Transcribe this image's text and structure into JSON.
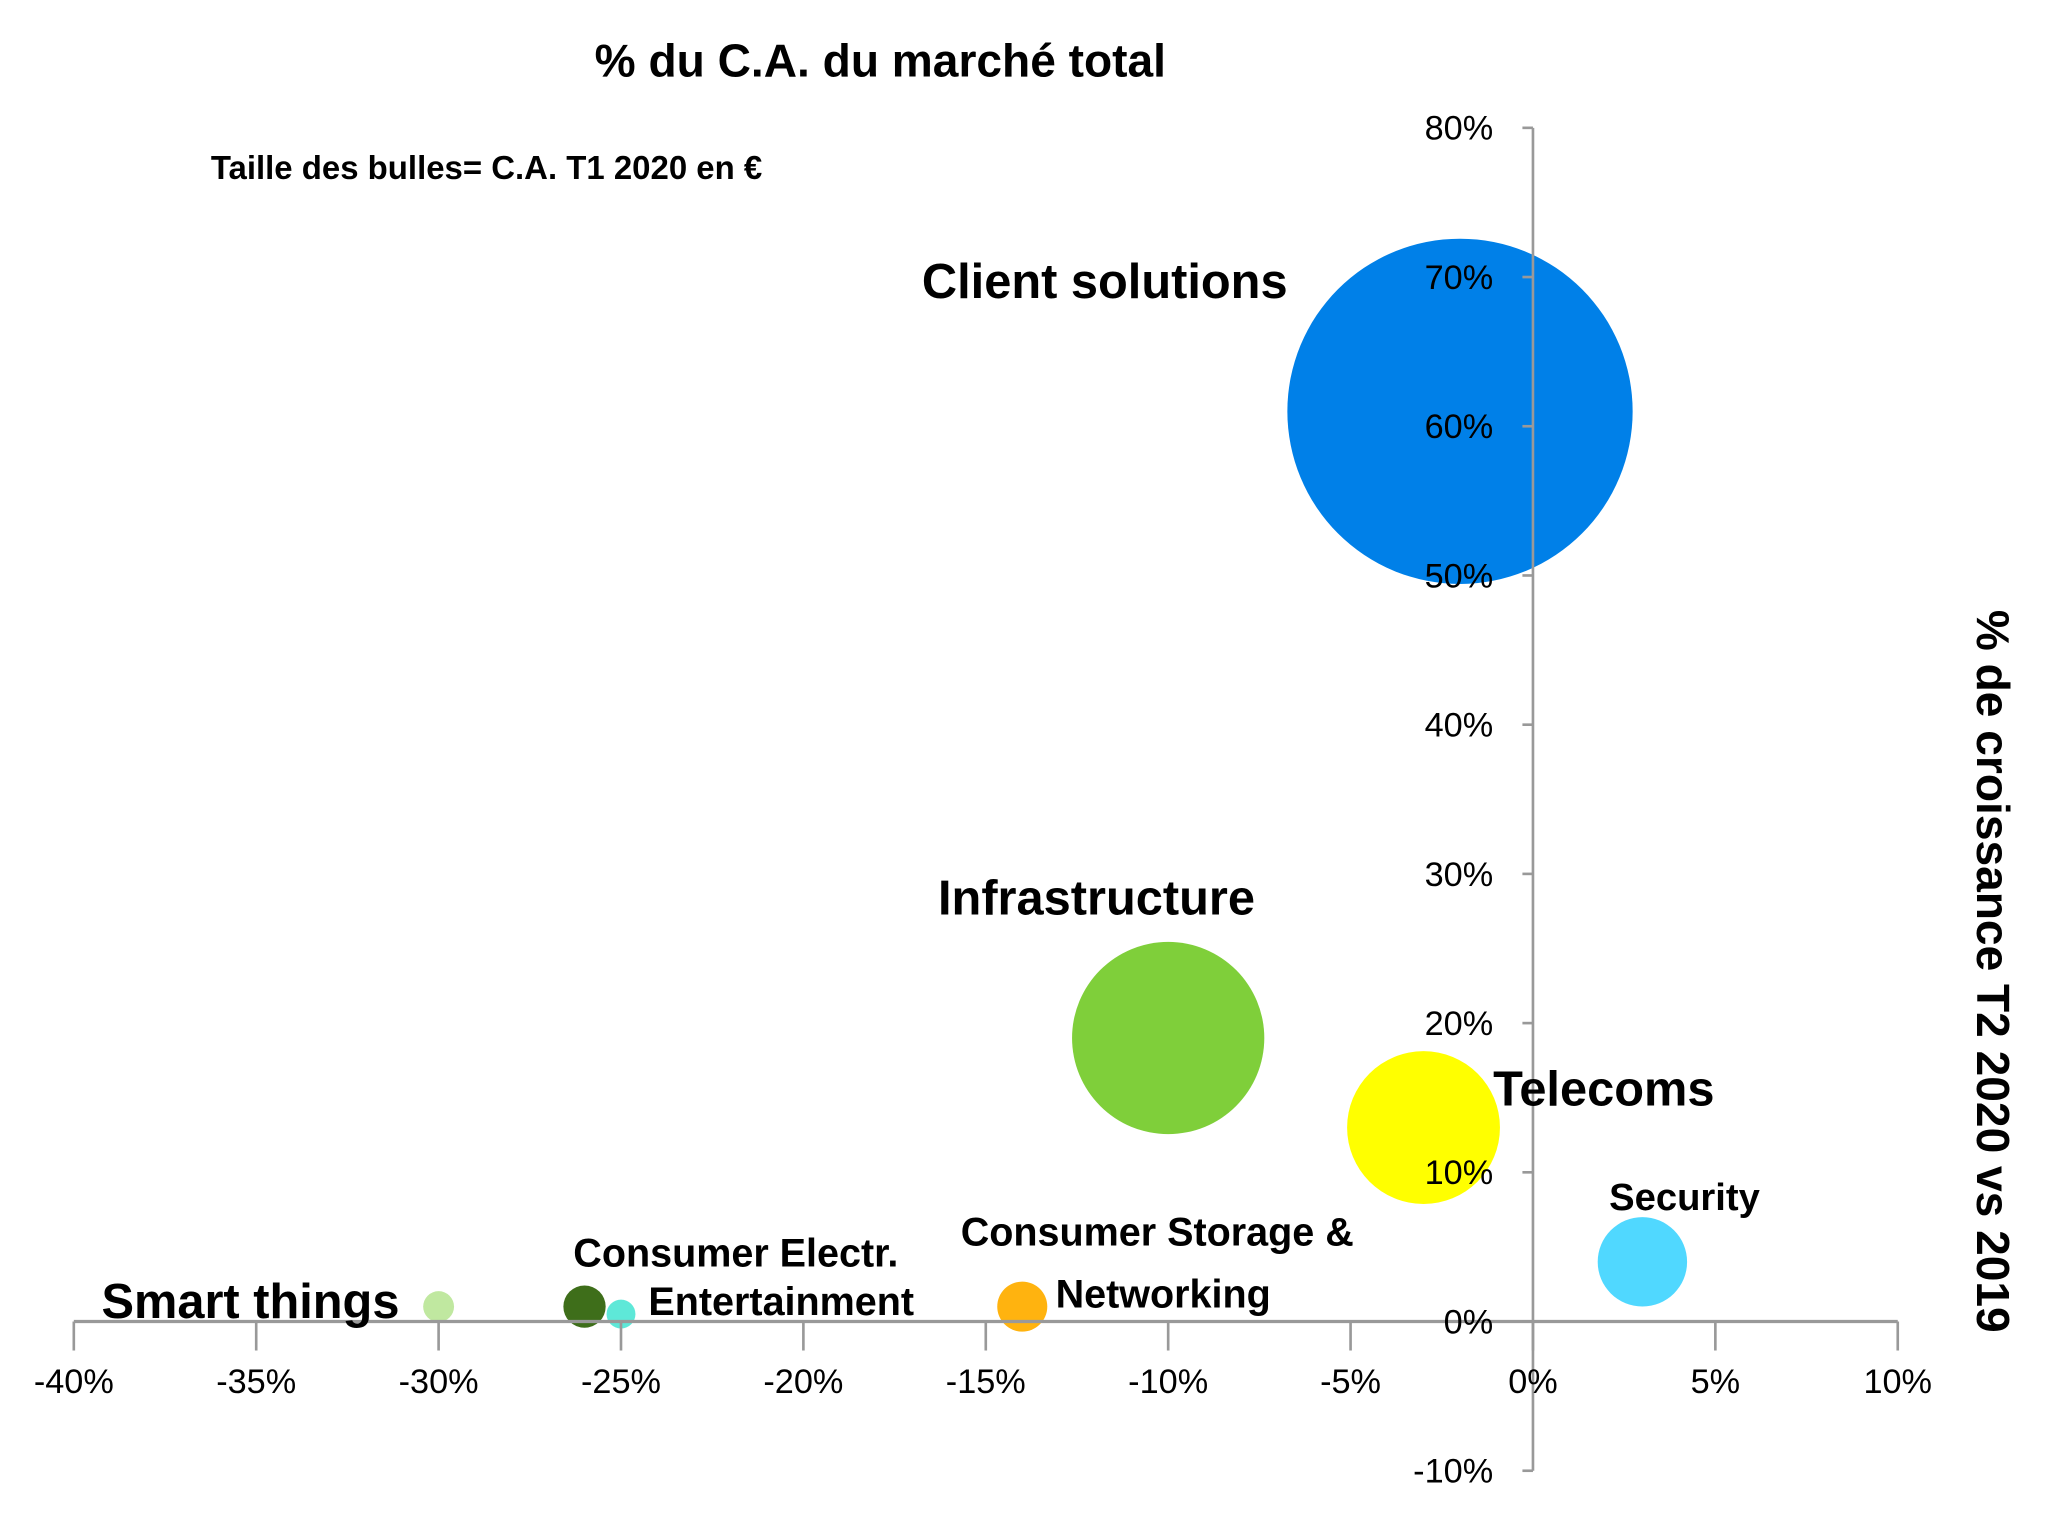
{
  "chart_data": {
    "type": "bubble",
    "title": "% du C.A. du marché total",
    "subtitle": "Taille des bulles= C.A. T1 2020 en €",
    "xlabel": "",
    "ylabel": "% de croissance T2 2020 vs 2019",
    "xlim": [
      -40,
      10
    ],
    "ylim": [
      -10,
      80
    ],
    "x_ticks": [
      "-40%",
      "-35%",
      "-30%",
      "-25%",
      "-20%",
      "-15%",
      "-10%",
      "-5%",
      "0%",
      "5%",
      "10%"
    ],
    "y_ticks": [
      "-10%",
      "0%",
      "10%",
      "20%",
      "30%",
      "40%",
      "50%",
      "60%",
      "70%",
      "80%"
    ],
    "grid": false,
    "size_units": "relative",
    "series": [
      {
        "name": "Client solutions",
        "x": -2,
        "y": 61,
        "size": 100,
        "color": "#0080E8"
      },
      {
        "name": "Infrastructure",
        "x": -10,
        "y": 19,
        "size": 31,
        "color": "#7FCF3A"
      },
      {
        "name": "Telecoms",
        "x": -3,
        "y": 13,
        "size": 19.6,
        "color": "#FFFF00"
      },
      {
        "name": "Security",
        "x": 3,
        "y": 4,
        "size": 6.7,
        "color": "#50D8FF"
      },
      {
        "name": "Consumer Storage & Networking",
        "label_lines": [
          "Consumer Storage &",
          "Networking"
        ],
        "x": -14,
        "y": 1,
        "size": 2.1,
        "color": "#FFB30F"
      },
      {
        "name": "Consumer Electr.",
        "x": -26,
        "y": 1,
        "size": 1.5,
        "color": "#3E6E1A"
      },
      {
        "name": "Entertainment",
        "x": -25,
        "y": 0.5,
        "size": 0.7,
        "color": "#5EE8D8"
      },
      {
        "name": "Smart things",
        "x": -30,
        "y": 1,
        "size": 0.8,
        "color": "#C0E8A0"
      }
    ]
  }
}
